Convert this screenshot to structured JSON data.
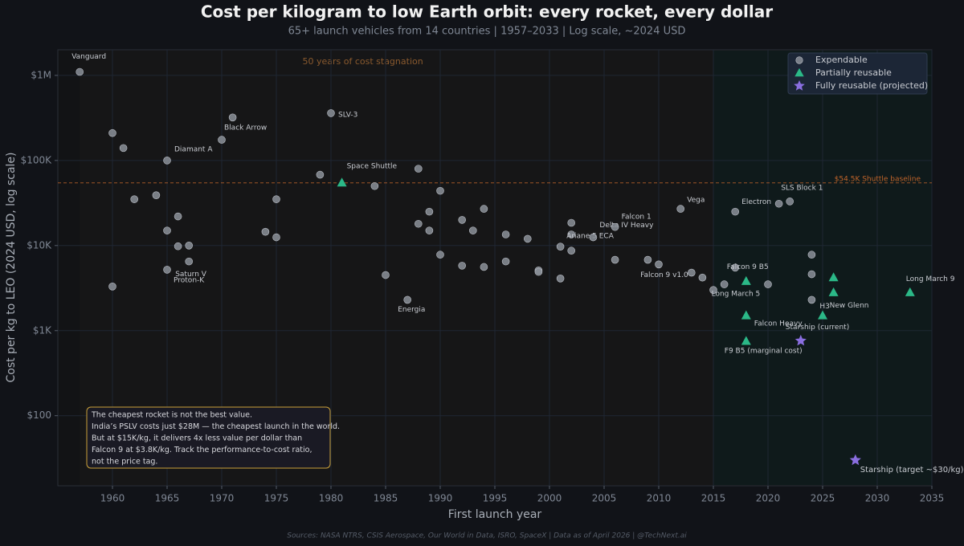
{
  "chart_data": {
    "type": "scatter",
    "title": "Cost per kilogram to low Earth orbit: every rocket, every dollar",
    "subtitle": "65+ launch vehicles from 14 countries  |  1957–2033  |  Log scale, ~2024 USD",
    "x_label": "First launch year",
    "y_label": "Cost per kg to LEO (2024 USD, log scale)",
    "footer": "Sources: NASA NTRS, CSIS Aerospace, Our World in Data, ISRO, SpaceX  |  Data as of April 2026  |  @TechNext.ai",
    "xlim": [
      1955,
      2035
    ],
    "xticks": [
      1960,
      1965,
      1970,
      1975,
      1980,
      1985,
      1990,
      1995,
      2000,
      2005,
      2010,
      2015,
      2020,
      2025,
      2030,
      2035
    ],
    "ylim": [
      15,
      2000000
    ],
    "log_y": true,
    "grid": true,
    "yticks": [
      {
        "value": 100,
        "label": "$100"
      },
      {
        "value": 1000,
        "label": "$1K"
      },
      {
        "value": 10000,
        "label": "$10K"
      },
      {
        "value": 100000,
        "label": "$100K"
      },
      {
        "value": 1000000,
        "label": "$1M"
      }
    ],
    "legend_position": "upper right",
    "reference_line": {
      "value": 54500,
      "label": "$54.5K Shuttle baseline",
      "color": "#c0642a"
    },
    "regions": [
      {
        "start": 1957,
        "end": 2015,
        "label": "50 years of cost stagnation"
      },
      {
        "start": 2015,
        "end": 2035
      }
    ],
    "note_lines": [
      "The cheapest rocket is not the best value.",
      "India’s PSLV costs just $28M — the cheapest launch in the world.",
      "But at $15K/kg, it delivers 4x less value per dollar than",
      "Falcon 9 at $3.8K/kg. Track the performance-to-cost ratio,",
      "not the price tag."
    ],
    "series": [
      {
        "name": "Expendable",
        "color": "#8b9099",
        "marker": "circle",
        "x": [
          1957,
          1960,
          1961,
          1960,
          1962,
          1964,
          1965,
          1965,
          1966,
          1966,
          1967,
          1965,
          1967,
          1970,
          1971,
          1974,
          1975,
          1975,
          1979,
          1980,
          1984,
          1985,
          1987,
          1988,
          1988,
          1989,
          1989,
          1990,
          1990,
          1992,
          1992,
          1993,
          1994,
          1994,
          1996,
          1996,
          1998,
          1999,
          1999,
          2001,
          2001,
          2002,
          2002,
          2002,
          2004,
          2006,
          2006,
          2009,
          2010,
          2013,
          2014,
          2015,
          2016,
          2012,
          2017,
          2017,
          2020,
          2021,
          2022,
          2024,
          2024,
          2024
        ],
        "values": [
          1100000,
          210000,
          140000,
          3300,
          35000,
          39000,
          100000,
          15000,
          22000,
          9800,
          10000,
          5200,
          6500,
          175000,
          320000,
          14500,
          35000,
          12500,
          68000,
          360000,
          50000,
          4500,
          2300,
          80000,
          18000,
          25000,
          15000,
          44000,
          7800,
          20000,
          5800,
          15000,
          5600,
          27000,
          13500,
          6500,
          12000,
          5100,
          4900,
          4100,
          9700,
          18500,
          13500,
          8700,
          12500,
          16500,
          6800,
          6800,
          6000,
          4800,
          4200,
          3000,
          3500,
          27000,
          25000,
          5500,
          3500,
          31000,
          33000,
          7800,
          4600,
          2300
        ],
        "labels": [
          "Vanguard",
          null,
          null,
          null,
          null,
          null,
          "Diamant A",
          null,
          null,
          null,
          null,
          "Proton-K",
          "Saturn V",
          "Black Arrow",
          null,
          null,
          null,
          null,
          null,
          "SLV-3",
          null,
          null,
          "Energia",
          null,
          null,
          null,
          null,
          null,
          null,
          null,
          null,
          null,
          null,
          null,
          null,
          null,
          null,
          null,
          null,
          null,
          null,
          null,
          null,
          "Ariane 5 ECA",
          "Delta IV Heavy",
          "Falcon 1",
          null,
          null,
          null,
          "Falcon 9 v1.0",
          null,
          null,
          "Long March 5",
          "Vega",
          "Electron",
          null,
          null,
          null,
          "SLS Block 1",
          null,
          null,
          "H3"
        ]
      },
      {
        "name": "Partially reusable",
        "color": "#2bb887",
        "marker": "triangle",
        "x": [
          1981,
          2018,
          2018,
          2018,
          2025,
          2026,
          2026,
          2033
        ],
        "values": [
          54500,
          3800,
          1500,
          750,
          1500,
          4200,
          2800,
          2800
        ],
        "labels": [
          "Space Shuttle",
          "Falcon 9 B5",
          "Falcon Heavy",
          "F9 B5 (marginal cost)",
          null,
          null,
          "New Glenn",
          "Long March 9"
        ]
      },
      {
        "name": "Fully reusable (projected)",
        "color": "#8a6ee0",
        "marker": "star",
        "x": [
          2023,
          2028
        ],
        "values": [
          760,
          30
        ],
        "labels": [
          "Starship (current)",
          "Starship (target ~$30/kg)"
        ]
      }
    ]
  }
}
